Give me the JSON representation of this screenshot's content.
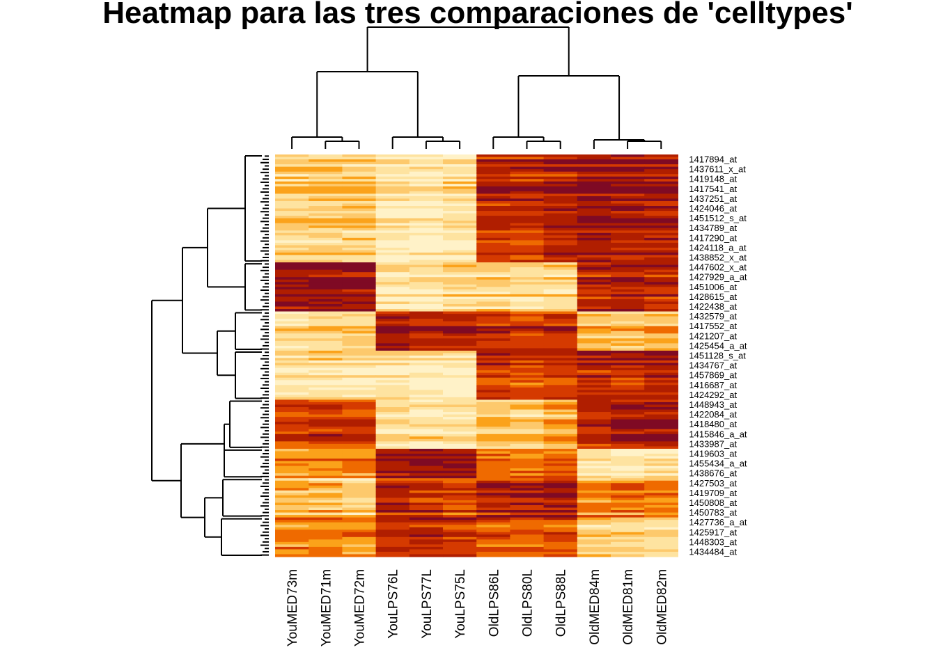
{
  "title": "Heatmap para las tres comparaciones de 'celltypes'",
  "chart_data": {
    "type": "heatmap",
    "title": "Heatmap para las tres comparaciones de 'celltypes'",
    "columns": [
      "YouMED73m",
      "YouMED71m",
      "YouMED72m",
      "YouLPS76L",
      "YouLPS77L",
      "YouLPS75L",
      "OldLPS86L",
      "OldLPS80L",
      "OldLPS88L",
      "OldMED84m",
      "OldMED81m",
      "OldMED82m"
    ],
    "row_labels": [
      "1417894_at",
      "1437611_x_at",
      "1419148_at",
      "1417541_at",
      "1437251_at",
      "1424046_at",
      "1451512_s_at",
      "1434789_at",
      "1417290_at",
      "1424118_a_at",
      "1438852_x_at",
      "1447602_x_at",
      "1427929_a_at",
      "1451006_at",
      "1428615_at",
      "1422438_at",
      "1432579_at",
      "1417552_at",
      "1421207_at",
      "1425454_a_at",
      "1451128_s_at",
      "1434767_at",
      "1457869_at",
      "1416687_at",
      "1424292_at",
      "1448943_at",
      "1422084_at",
      "1418480_at",
      "1415846_a_at",
      "1433987_at",
      "1419603_at",
      "1455434_a_at",
      "1438676_at",
      "1427503_at",
      "1419709_at",
      "1450808_at",
      "1450783_at",
      "1427736_a_at",
      "1425917_at",
      "1448303_at",
      "1434484_at"
    ],
    "color_scale": [
      "#7f0a24",
      "#b01e00",
      "#d53a00",
      "#ef6a00",
      "#fba21a",
      "#fdc96c",
      "#fee3a0",
      "#fff2c8"
    ],
    "value_range": [
      0,
      1
    ],
    "note_scale": "0 = lightest (low expression), 1 = darkest (high expression)",
    "row_clusters": [
      {
        "rows": [
          0,
          11
        ],
        "values": [
          0.25,
          0.28,
          0.27,
          0.12,
          0.08,
          0.15,
          0.82,
          0.78,
          0.85,
          0.92,
          0.9,
          0.88
        ]
      },
      {
        "rows": [
          11,
          16
        ],
        "values": [
          0.88,
          0.92,
          0.9,
          0.15,
          0.1,
          0.18,
          0.2,
          0.15,
          0.18,
          0.82,
          0.85,
          0.8
        ]
      },
      {
        "rows": [
          16,
          20
        ],
        "values": [
          0.22,
          0.25,
          0.3,
          0.95,
          0.9,
          0.92,
          0.85,
          0.8,
          0.82,
          0.4,
          0.35,
          0.42
        ]
      },
      {
        "rows": [
          20,
          25
        ],
        "values": [
          0.2,
          0.22,
          0.18,
          0.2,
          0.15,
          0.12,
          0.8,
          0.75,
          0.78,
          0.88,
          0.85,
          0.92
        ]
      },
      {
        "rows": [
          25,
          30
        ],
        "values": [
          0.7,
          0.78,
          0.75,
          0.18,
          0.14,
          0.16,
          0.35,
          0.3,
          0.4,
          0.85,
          0.9,
          0.92
        ]
      },
      {
        "rows": [
          30,
          33
        ],
        "values": [
          0.45,
          0.48,
          0.5,
          0.9,
          0.95,
          0.93,
          0.6,
          0.55,
          0.6,
          0.12,
          0.1,
          0.15
        ]
      },
      {
        "rows": [
          33,
          37
        ],
        "values": [
          0.3,
          0.25,
          0.2,
          0.78,
          0.72,
          0.68,
          0.82,
          0.8,
          0.85,
          0.45,
          0.5,
          0.48
        ]
      },
      {
        "rows": [
          37,
          41
        ],
        "values": [
          0.55,
          0.58,
          0.52,
          0.8,
          0.85,
          0.78,
          0.7,
          0.62,
          0.65,
          0.3,
          0.25,
          0.2
        ]
      }
    ],
    "column_dendrogram": [
      "((YouMED73m,(YouMED71m,YouMED72m)),(YouLPS76L,(YouLPS77L,YouLPS75L)))",
      "((OldLPS86L,(OldLPS80L,OldLPS88L)),(OldMED84m,(OldMED81m,OldMED82m)))"
    ],
    "legend": "none"
  }
}
